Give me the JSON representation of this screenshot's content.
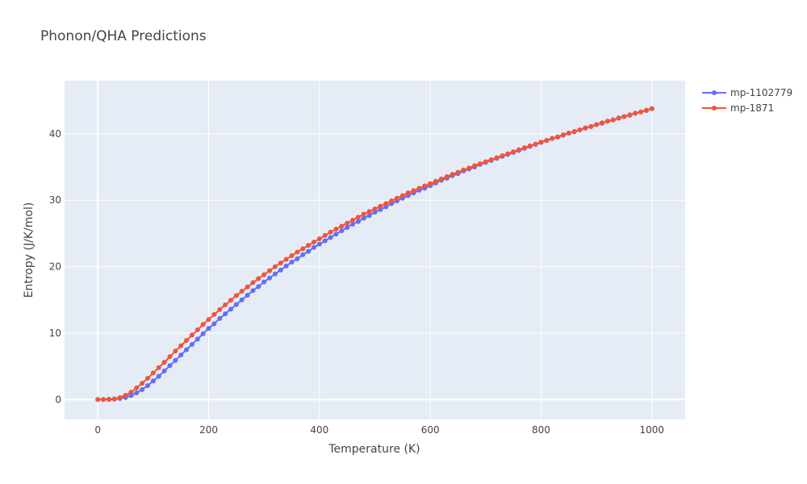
{
  "chart_data": {
    "type": "line",
    "title": "Phonon/QHA Predictions",
    "xlabel": "Temperature (K)",
    "ylabel": "Entropy (J/K/mol)",
    "xlim": [
      -60,
      1060
    ],
    "ylim": [
      -3,
      48
    ],
    "x_ticks": [
      0,
      200,
      400,
      600,
      800,
      1000
    ],
    "y_ticks": [
      0,
      10,
      20,
      30,
      40
    ],
    "grid": true,
    "legend_position": "top-right",
    "x": [
      0,
      10,
      20,
      30,
      40,
      50,
      60,
      70,
      80,
      90,
      100,
      110,
      120,
      130,
      140,
      150,
      160,
      170,
      180,
      190,
      200,
      210,
      220,
      230,
      240,
      250,
      260,
      270,
      280,
      290,
      300,
      310,
      320,
      330,
      340,
      350,
      360,
      370,
      380,
      390,
      400,
      410,
      420,
      430,
      440,
      450,
      460,
      470,
      480,
      490,
      500,
      510,
      520,
      530,
      540,
      550,
      560,
      570,
      580,
      590,
      600,
      610,
      620,
      630,
      640,
      650,
      660,
      670,
      680,
      690,
      700,
      710,
      720,
      730,
      740,
      750,
      760,
      770,
      780,
      790,
      800,
      810,
      820,
      830,
      840,
      850,
      860,
      870,
      880,
      890,
      900,
      910,
      920,
      930,
      940,
      950,
      960,
      970,
      980,
      990,
      1000
    ],
    "series": [
      {
        "name": "mp-1102779",
        "color": "#636efa",
        "values": [
          0,
          0,
          0,
          0.05,
          0.15,
          0.3,
          0.6,
          1.0,
          1.5,
          2.1,
          2.8,
          3.5,
          4.3,
          5.1,
          5.9,
          6.7,
          7.5,
          8.3,
          9.1,
          9.9,
          10.7,
          11.4,
          12.2,
          12.9,
          13.6,
          14.3,
          15.0,
          15.7,
          16.4,
          17.0,
          17.7,
          18.3,
          18.9,
          19.5,
          20.1,
          20.7,
          21.2,
          21.8,
          22.3,
          22.9,
          23.4,
          23.9,
          24.4,
          24.9,
          25.4,
          25.9,
          26.4,
          26.8,
          27.3,
          27.7,
          28.2,
          28.6,
          29.0,
          29.5,
          29.9,
          30.3,
          30.7,
          31.1,
          31.5,
          31.8,
          32.2,
          32.6,
          33.0,
          33.3,
          33.7,
          34.0,
          34.4,
          34.7,
          35.0,
          35.4,
          35.7,
          36.0,
          36.3,
          36.6,
          36.9,
          37.2,
          37.5,
          37.8,
          38.1,
          38.4,
          38.7,
          39.0,
          39.3,
          39.5,
          39.8,
          40.1,
          40.3,
          40.6,
          40.9,
          41.1,
          41.4,
          41.6,
          41.9,
          42.1,
          42.4,
          42.6,
          42.8,
          43.1,
          43.3,
          43.5,
          43.8
        ]
      },
      {
        "name": "mp-1871",
        "color": "#ef553b",
        "values": [
          0,
          0,
          0.05,
          0.1,
          0.3,
          0.65,
          1.1,
          1.75,
          2.45,
          3.2,
          4.0,
          4.8,
          5.6,
          6.45,
          7.3,
          8.1,
          8.9,
          9.7,
          10.5,
          11.3,
          12.05,
          12.8,
          13.55,
          14.25,
          14.95,
          15.65,
          16.3,
          16.95,
          17.6,
          18.2,
          18.8,
          19.4,
          20.0,
          20.55,
          21.1,
          21.65,
          22.2,
          22.7,
          23.2,
          23.7,
          24.2,
          24.7,
          25.2,
          25.65,
          26.1,
          26.55,
          27.0,
          27.45,
          27.9,
          28.3,
          28.7,
          29.1,
          29.5,
          29.9,
          30.3,
          30.7,
          31.1,
          31.45,
          31.8,
          32.15,
          32.5,
          32.85,
          33.2,
          33.55,
          33.9,
          34.2,
          34.55,
          34.85,
          35.2,
          35.5,
          35.8,
          36.1,
          36.4,
          36.7,
          37.0,
          37.3,
          37.6,
          37.9,
          38.2,
          38.45,
          38.75,
          39.0,
          39.3,
          39.55,
          39.85,
          40.1,
          40.35,
          40.6,
          40.85,
          41.1,
          41.4,
          41.65,
          41.9,
          42.1,
          42.35,
          42.6,
          42.85,
          43.1,
          43.3,
          43.55,
          43.8
        ]
      }
    ]
  }
}
